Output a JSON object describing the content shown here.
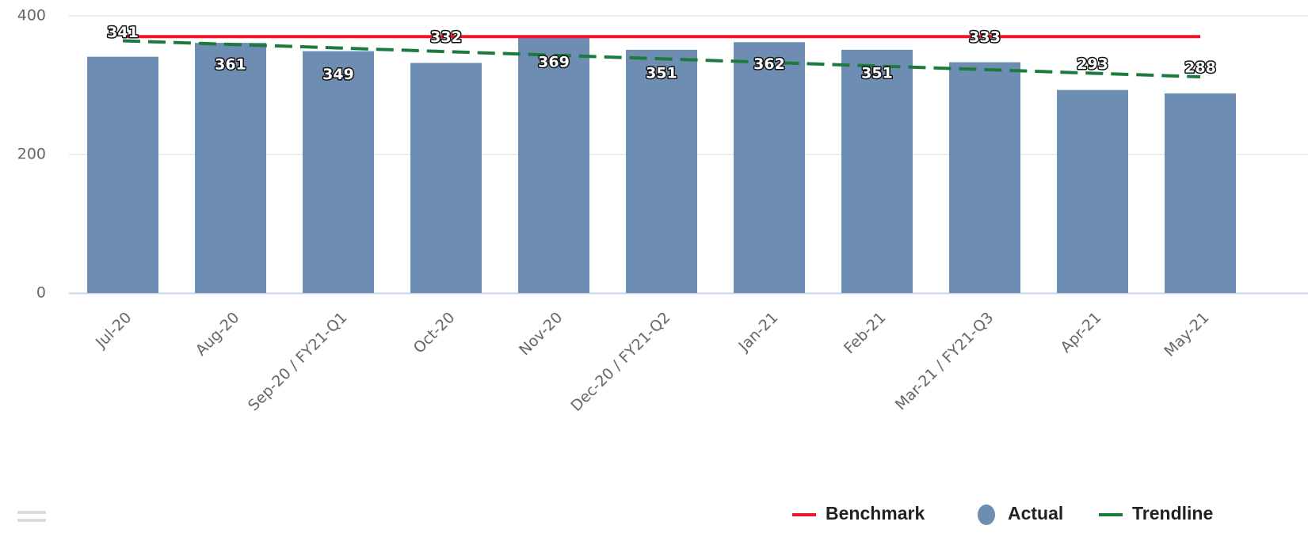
{
  "chart_data": {
    "type": "bar",
    "categories": [
      "Jul-20",
      "Aug-20",
      "Sep-20 / FY21-Q1",
      "Oct-20",
      "Nov-20",
      "Dec-20 / FY21-Q2",
      "Jan-21",
      "Feb-21",
      "Mar-21 / FY21-Q3",
      "Apr-21",
      "May-21"
    ],
    "series": [
      {
        "name": "Benchmark",
        "type": "line",
        "color": "#f0132a",
        "values": [
          370,
          370,
          370,
          370,
          370,
          370,
          370,
          370,
          370,
          370,
          370
        ]
      },
      {
        "name": "Actual",
        "type": "bar",
        "color": "#6d8db3",
        "values": [
          341,
          361,
          349,
          332,
          369,
          351,
          362,
          351,
          333,
          293,
          288
        ]
      },
      {
        "name": "Trendline",
        "type": "line",
        "dashed": true,
        "color": "#1b7a3c",
        "values": [
          364,
          358.8,
          353.6,
          348.4,
          343.2,
          338,
          332.8,
          327.6,
          322.4,
          317.2,
          312
        ]
      }
    ],
    "ylim": [
      0,
      400
    ],
    "yticks": [
      0,
      200,
      400
    ],
    "grid": true,
    "legend": "bottom-right"
  }
}
